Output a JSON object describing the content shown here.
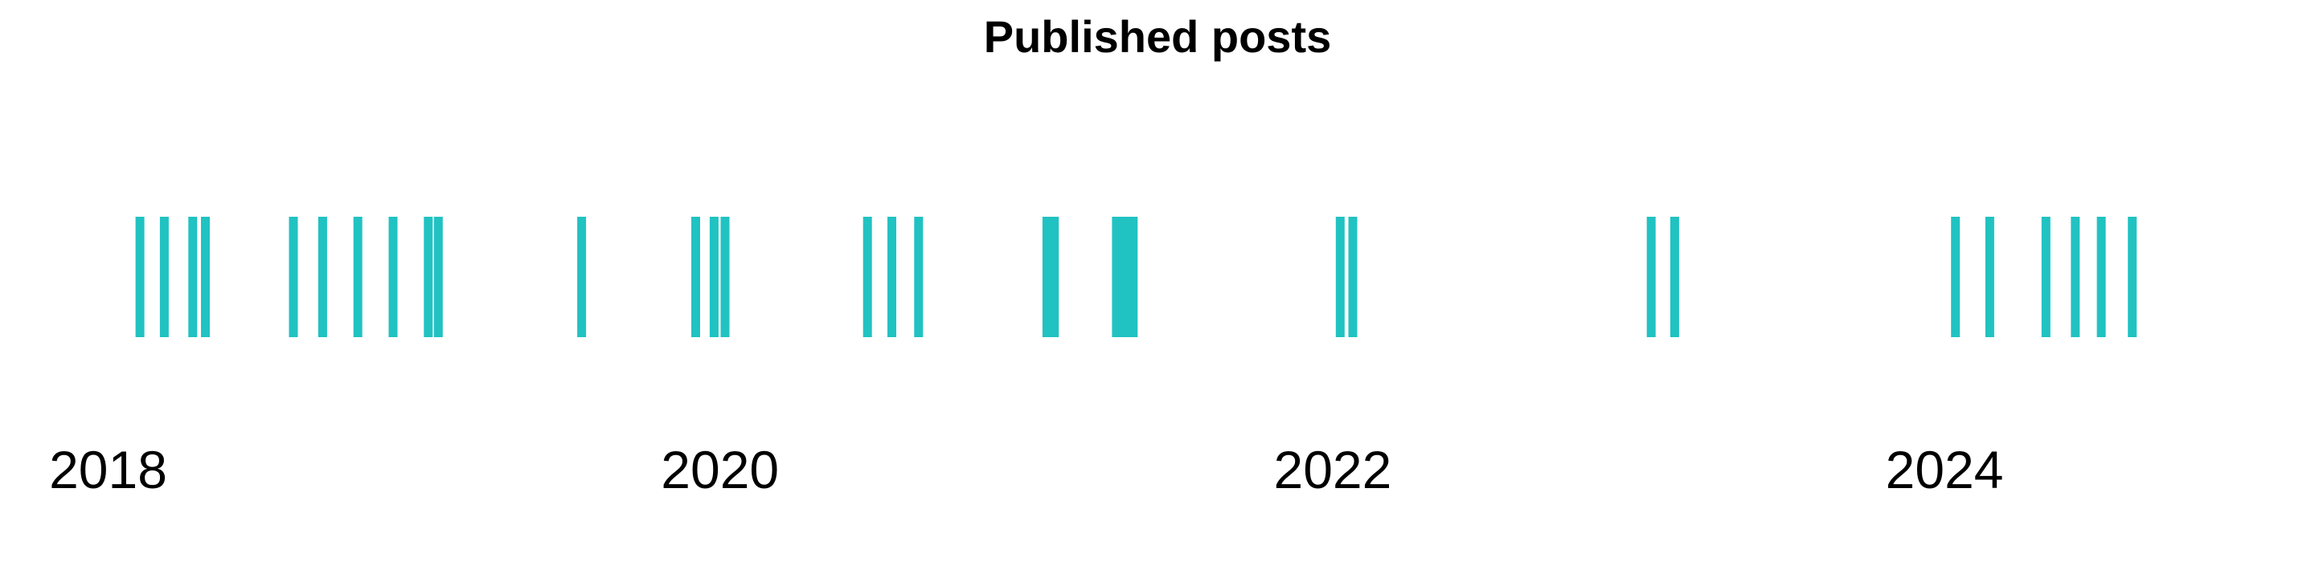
{
  "chart_data": {
    "type": "strip",
    "title": "Published posts",
    "xlabel": "",
    "ylabel": "",
    "color": "#21C2C2",
    "grid": false,
    "xlim": [
      "2017-08-25",
      "2025-03-18"
    ],
    "x_ticks": [
      "2018-01-01",
      "2020-01-01",
      "2022-01-01",
      "2024-01-01"
    ],
    "x_tick_labels": [
      "2018",
      "2020",
      "2022",
      "2024"
    ],
    "events": [
      "2018-02-08",
      "2018-03-09",
      "2018-04-12",
      "2018-04-27",
      "2018-08-10",
      "2018-09-14",
      "2018-10-26",
      "2018-12-07",
      "2019-01-18",
      "2019-01-30",
      "2019-07-20",
      "2019-12-03",
      "2019-12-25",
      "2020-01-07",
      "2020-06-25",
      "2020-07-24",
      "2020-08-25",
      "2021-01-25",
      "2021-02-03",
      "2021-04-18",
      "2021-04-28",
      "2021-05-08",
      "2022-01-10",
      "2022-01-25",
      "2023-01-16",
      "2023-02-13",
      "2024-01-14",
      "2024-02-24",
      "2024-05-01",
      "2024-06-05",
      "2024-07-06",
      "2024-08-12"
    ]
  }
}
